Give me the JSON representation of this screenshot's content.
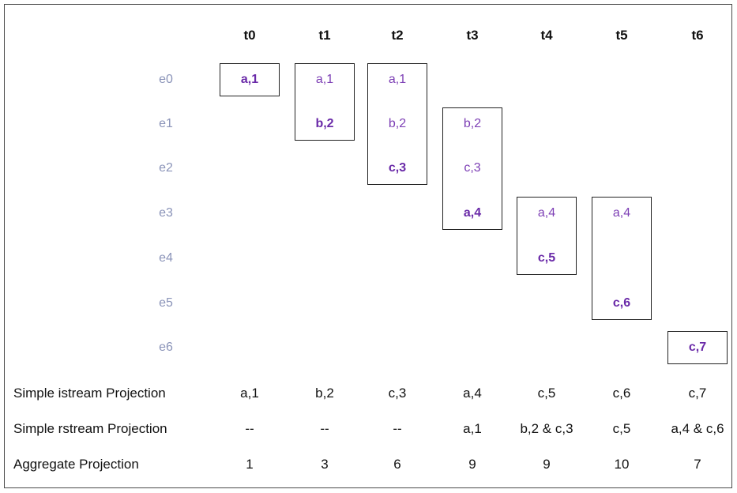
{
  "columns": [
    "t0",
    "t1",
    "t2",
    "t3",
    "t4",
    "t5",
    "t6"
  ],
  "events": [
    "e0",
    "e1",
    "e2",
    "e3",
    "e4",
    "e5",
    "e6"
  ],
  "cells": [
    [
      {
        "text": "a,1",
        "new": true
      }
    ],
    [
      {
        "text": "a,1",
        "new": false
      },
      {
        "text": "b,2",
        "new": true
      }
    ],
    [
      {
        "text": "a,1",
        "new": false
      },
      {
        "text": "b,2",
        "new": false
      },
      {
        "text": "c,3",
        "new": true
      }
    ],
    [
      {
        "text": "b,2",
        "new": false
      },
      {
        "text": "c,3",
        "new": false
      },
      {
        "text": "a,4",
        "new": true
      }
    ],
    [
      {
        "text": "a,4",
        "new": false
      },
      {
        "text": "c,5",
        "new": true
      }
    ],
    [
      {
        "text": "a,4",
        "new": false
      },
      {
        "text": "c,6",
        "new": true
      }
    ],
    [
      {
        "text": "c,7",
        "new": true
      }
    ]
  ],
  "windows": [
    {
      "column": 0,
      "first_row": 0,
      "last_row": 0
    },
    {
      "column": 1,
      "first_row": 0,
      "last_row": 1
    },
    {
      "column": 2,
      "first_row": 0,
      "last_row": 2
    },
    {
      "column": 3,
      "first_row": 1,
      "last_row": 3
    },
    {
      "column": 4,
      "first_row": 3,
      "last_row": 4
    },
    {
      "column": 5,
      "first_row": 3,
      "last_row": 5
    },
    {
      "column": 6,
      "first_row": 6,
      "last_row": 6
    }
  ],
  "cell_rows": [
    [
      0
    ],
    [
      0,
      1
    ],
    [
      0,
      1,
      2
    ],
    [
      1,
      2,
      3
    ],
    [
      3,
      4
    ],
    [
      3,
      5
    ],
    [
      6
    ]
  ],
  "summary": [
    {
      "label": "Simple istream Projection",
      "values": [
        "a,1",
        "b,2",
        "c,3",
        "a,4",
        "c,5",
        "c,6",
        "c,7"
      ]
    },
    {
      "label": "Simple rstream Projection",
      "values": [
        "--",
        "--",
        "--",
        "a,1",
        "b,2 & c,3",
        "c,5",
        "a,4 & c,6"
      ]
    },
    {
      "label": "Aggregate Projection",
      "values": [
        "1",
        "3",
        "6",
        "9",
        "9",
        "10",
        "7"
      ]
    }
  ]
}
